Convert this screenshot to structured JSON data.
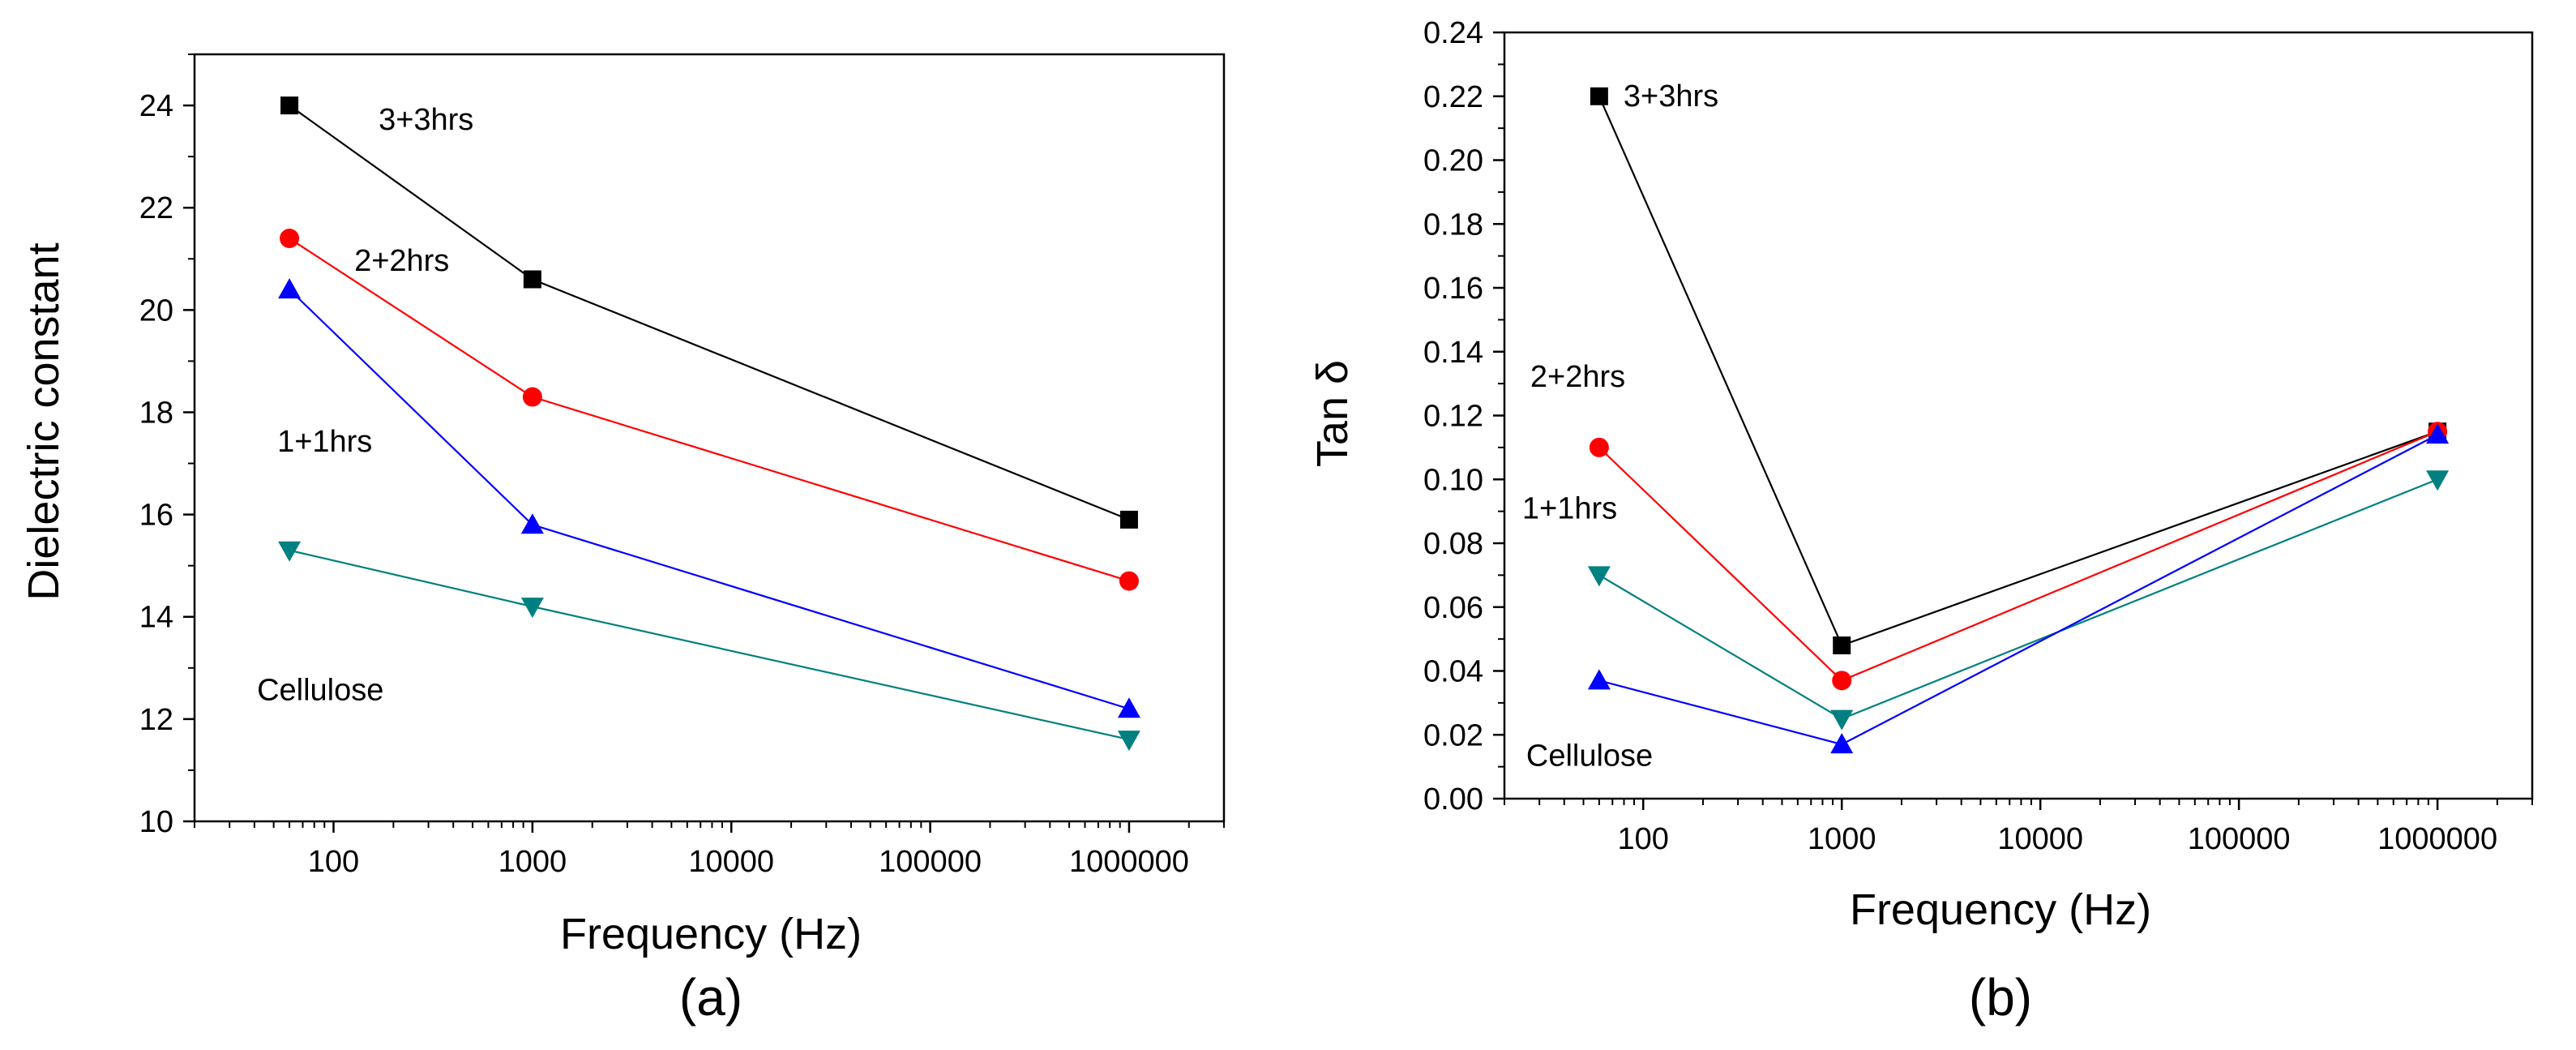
{
  "chart_data": [
    {
      "type": "line",
      "panel_label": "(a)",
      "xlabel": "Frequency (Hz)",
      "ylabel": "Dielectric constant",
      "xscale": "log",
      "xlim": [
        20,
        3000000
      ],
      "ylim": [
        10,
        25
      ],
      "x_ticks": [
        100,
        1000,
        10000,
        100000,
        1000000
      ],
      "x_tick_labels": [
        "100",
        "1000",
        "10000",
        "100000",
        "1000000"
      ],
      "y_ticks": [
        10,
        12,
        14,
        16,
        18,
        20,
        22,
        24
      ],
      "y_tick_labels": [
        "10",
        "12",
        "14",
        "16",
        "18",
        "20",
        "22",
        "24"
      ],
      "x": [
        60,
        1000,
        1000000
      ],
      "series": [
        {
          "name": "3+3hrs",
          "marker": "square",
          "color": "#000000",
          "values": [
            24.0,
            20.6,
            15.9
          ]
        },
        {
          "name": "2+2hrs",
          "marker": "circle",
          "color": "#ff0000",
          "values": [
            21.4,
            18.3,
            14.7
          ]
        },
        {
          "name": "1+1hrs",
          "marker": "triangle-up",
          "color": "#0000ff",
          "values": [
            20.4,
            15.8,
            12.2
          ]
        },
        {
          "name": "Cellulose",
          "marker": "triangle-down",
          "color": "#008080",
          "values": [
            15.3,
            14.2,
            11.6
          ]
        }
      ]
    },
    {
      "type": "line",
      "panel_label": "(b)",
      "xlabel": "Frequency (Hz)",
      "ylabel": "Tan δ",
      "xscale": "log",
      "xlim": [
        20,
        3000000
      ],
      "ylim": [
        0,
        0.24
      ],
      "x_ticks": [
        100,
        1000,
        10000,
        100000,
        1000000
      ],
      "x_tick_labels": [
        "100",
        "1000",
        "10000",
        "100000",
        "1000000"
      ],
      "y_ticks": [
        0,
        0.02,
        0.04,
        0.06,
        0.08,
        0.1,
        0.12,
        0.14,
        0.16,
        0.18,
        0.2,
        0.22,
        0.24
      ],
      "y_tick_labels": [
        "0.00",
        "0.02",
        "0.04",
        "0.06",
        "0.08",
        "0.10",
        "0.12",
        "0.14",
        "0.16",
        "0.18",
        "0.20",
        "0.22",
        "0.24"
      ],
      "x": [
        60,
        1000,
        1000000
      ],
      "series": [
        {
          "name": "3+3hrs",
          "marker": "square",
          "color": "#000000",
          "values": [
            0.22,
            0.048,
            0.115
          ]
        },
        {
          "name": "2+2hrs",
          "marker": "circle",
          "color": "#ff0000",
          "values": [
            0.11,
            0.037,
            0.115
          ]
        },
        {
          "name": "1+1hrs",
          "marker": "triangle-down",
          "color": "#008080",
          "values": [
            0.07,
            0.025,
            0.1
          ]
        },
        {
          "name": "Cellulose",
          "marker": "triangle-up",
          "color": "#0000ff",
          "values": [
            0.037,
            0.017,
            0.114
          ]
        }
      ]
    }
  ]
}
